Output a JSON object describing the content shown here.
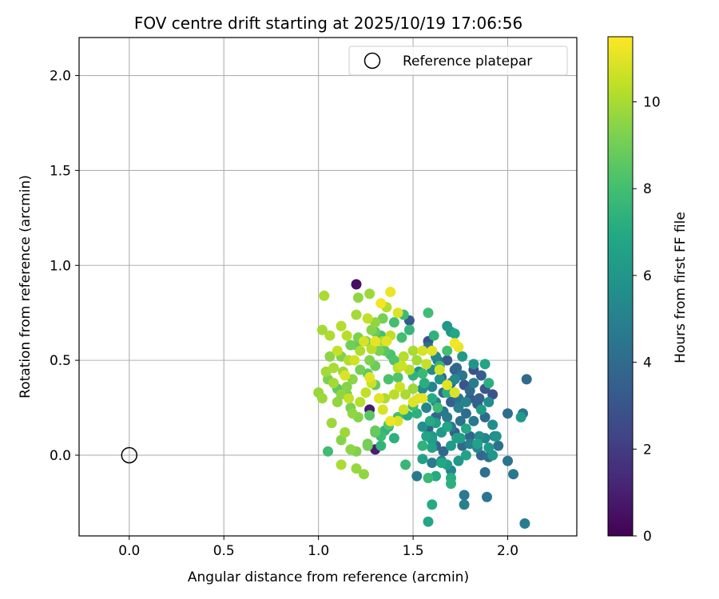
{
  "chart_data": {
    "type": "scatter",
    "title": "FOV centre drift starting at 2025/10/19 17:06:56",
    "xlabel": "Angular distance from reference (arcmin)",
    "ylabel": "Rotation from reference (arcmin)",
    "xlim": [
      -0.265,
      2.365
    ],
    "ylim": [
      -0.425,
      2.2
    ],
    "xticks": [
      0.0,
      0.5,
      1.0,
      1.5,
      2.0
    ],
    "xtick_labels": [
      "0.0",
      "0.5",
      "1.0",
      "1.5",
      "2.0"
    ],
    "yticks": [
      0.0,
      0.5,
      1.0,
      1.5,
      2.0
    ],
    "ytick_labels": [
      "0.0",
      "0.5",
      "1.0",
      "1.5",
      "2.0"
    ],
    "grid": true,
    "colorbar": {
      "label": "Hours from first FF file",
      "range": [
        0,
        11.5
      ],
      "ticks": [
        0,
        2,
        4,
        6,
        8,
        10
      ],
      "tick_labels": [
        "0",
        "2",
        "4",
        "6",
        "8",
        "10"
      ],
      "colormap": "viridis"
    },
    "legend": {
      "position": "top-right",
      "entries": [
        "Reference platepar"
      ]
    },
    "reference_point": {
      "x": 0.0,
      "y": 0.0,
      "label": "Reference platepar"
    },
    "points": [
      [
        1.2,
        0.9,
        0.5
      ],
      [
        1.27,
        0.24,
        0.8
      ],
      [
        1.3,
        0.03,
        1.0
      ],
      [
        1.48,
        0.71,
        3.3
      ],
      [
        1.58,
        0.6,
        3.0
      ],
      [
        1.68,
        0.5,
        3.2
      ],
      [
        1.72,
        0.45,
        3.5
      ],
      [
        1.77,
        0.37,
        3.0
      ],
      [
        1.82,
        0.45,
        2.8
      ],
      [
        1.86,
        0.42,
        3.4
      ],
      [
        1.88,
        0.35,
        3.1
      ],
      [
        1.92,
        0.32,
        3.0
      ],
      [
        1.8,
        0.3,
        3.3
      ],
      [
        1.84,
        0.27,
        3.5
      ],
      [
        1.7,
        0.28,
        3.6
      ],
      [
        1.66,
        0.33,
        3.7
      ],
      [
        1.62,
        0.2,
        3.8
      ],
      [
        1.58,
        0.14,
        3.5
      ],
      [
        1.62,
        0.05,
        3.6
      ],
      [
        1.66,
        0.02,
        3.9
      ],
      [
        1.72,
        0.12,
        3.5
      ],
      [
        1.76,
        0.05,
        4.0
      ],
      [
        1.8,
        0.1,
        3.7
      ],
      [
        1.86,
        0.0,
        3.8
      ],
      [
        1.9,
        -0.01,
        4.2
      ],
      [
        1.95,
        0.05,
        4.3
      ],
      [
        2.0,
        0.22,
        4.1
      ],
      [
        2.08,
        0.22,
        4.5
      ],
      [
        2.1,
        0.4,
        4.0
      ],
      [
        2.0,
        -0.03,
        4.4
      ],
      [
        2.03,
        -0.1,
        4.6
      ],
      [
        2.09,
        -0.36,
        4.8
      ],
      [
        1.89,
        -0.22,
        4.5
      ],
      [
        1.77,
        -0.21,
        4.7
      ],
      [
        1.77,
        -0.26,
        4.9
      ],
      [
        1.88,
        -0.09,
        4.3
      ],
      [
        1.52,
        -0.11,
        4.6
      ],
      [
        1.6,
        -0.04,
        4.8
      ],
      [
        1.65,
        -0.03,
        5.0
      ],
      [
        1.7,
        -0.08,
        5.2
      ],
      [
        1.65,
        0.41,
        3.9
      ],
      [
        1.7,
        0.38,
        4.2
      ],
      [
        1.74,
        0.3,
        4.4
      ],
      [
        1.78,
        0.22,
        4.1
      ],
      [
        1.82,
        0.18,
        4.6
      ],
      [
        1.68,
        0.2,
        4.7
      ],
      [
        1.74,
        0.25,
        4.9
      ],
      [
        1.8,
        0.06,
        5.0
      ],
      [
        1.84,
        0.04,
        5.3
      ],
      [
        1.88,
        0.09,
        5.1
      ],
      [
        1.93,
        0.1,
        5.4
      ],
      [
        1.92,
        0.16,
        5.6
      ],
      [
        1.57,
        0.25,
        5.2
      ],
      [
        1.55,
        0.35,
        5.5
      ],
      [
        1.53,
        0.44,
        5.8
      ],
      [
        1.62,
        0.52,
        5.3
      ],
      [
        1.68,
        0.68,
        6.0
      ],
      [
        1.7,
        0.65,
        6.1
      ],
      [
        1.6,
        0.45,
        5.6
      ],
      [
        1.64,
        0.4,
        5.9
      ],
      [
        1.55,
        0.15,
        5.7
      ],
      [
        1.6,
        0.1,
        6.2
      ],
      [
        1.65,
        0.12,
        6.1
      ],
      [
        1.7,
        0.05,
        6.3
      ],
      [
        1.75,
        0.09,
        6.4
      ],
      [
        1.84,
        0.06,
        6.6
      ],
      [
        1.9,
        0.04,
        6.2
      ],
      [
        1.55,
        -0.02,
        6.5
      ],
      [
        1.6,
        0.08,
        6.3
      ],
      [
        1.58,
        -0.35,
        6.8
      ],
      [
        1.6,
        -0.26,
        7.0
      ],
      [
        1.65,
        -0.04,
        6.9
      ],
      [
        1.7,
        -0.12,
        7.1
      ],
      [
        1.62,
        -0.11,
        7.0
      ],
      [
        1.6,
        0.04,
        6.6
      ],
      [
        1.62,
        0.17,
        6.4
      ],
      [
        1.68,
        0.15,
        6.8
      ],
      [
        1.73,
        0.09,
        6.5
      ],
      [
        1.78,
        0.14,
        6.9
      ],
      [
        1.82,
        0.48,
        5.9
      ],
      [
        1.88,
        0.48,
        6.7
      ],
      [
        1.9,
        0.38,
        7.2
      ],
      [
        1.86,
        0.24,
        6.3
      ],
      [
        2.07,
        0.2,
        6.2
      ],
      [
        1.68,
        0.33,
        7.2
      ],
      [
        1.6,
        0.3,
        7.0
      ],
      [
        1.55,
        0.05,
        7.4
      ],
      [
        1.46,
        -0.05,
        7.6
      ],
      [
        1.52,
        0.22,
        7.3
      ],
      [
        1.5,
        0.26,
        7.8
      ],
      [
        1.55,
        0.43,
        7.7
      ],
      [
        1.58,
        0.75,
        7.9
      ],
      [
        1.45,
        0.74,
        7.8
      ],
      [
        1.4,
        0.7,
        8.0
      ],
      [
        1.33,
        0.63,
        8.1
      ],
      [
        1.38,
        0.53,
        8.2
      ],
      [
        1.42,
        0.41,
        8.3
      ],
      [
        1.35,
        0.13,
        7.5
      ],
      [
        1.33,
        0.1,
        7.8
      ],
      [
        1.37,
        0.16,
        8.4
      ],
      [
        1.42,
        0.2,
        8.0
      ],
      [
        1.27,
        0.21,
        8.5
      ],
      [
        1.05,
        0.02,
        7.9
      ],
      [
        1.1,
        0.35,
        8.6
      ],
      [
        1.15,
        0.32,
        8.9
      ],
      [
        1.2,
        0.58,
        8.7
      ],
      [
        1.25,
        0.6,
        9.0
      ],
      [
        1.3,
        0.65,
        8.8
      ],
      [
        1.32,
        0.55,
        9.2
      ],
      [
        1.27,
        0.5,
        9.3
      ],
      [
        1.22,
        0.45,
        9.1
      ],
      [
        1.18,
        0.4,
        9.5
      ],
      [
        1.15,
        0.36,
        9.4
      ],
      [
        1.1,
        0.28,
        9.6
      ],
      [
        1.05,
        0.4,
        9.2
      ],
      [
        1.02,
        0.3,
        9.8
      ],
      [
        1.0,
        0.33,
        9.7
      ],
      [
        1.04,
        0.44,
        9.9
      ],
      [
        1.08,
        0.46,
        10.0
      ],
      [
        1.13,
        0.44,
        9.8
      ],
      [
        1.16,
        0.5,
        10.2
      ],
      [
        1.22,
        0.55,
        10.1
      ],
      [
        1.28,
        0.56,
        10.3
      ],
      [
        1.34,
        0.6,
        10.0
      ],
      [
        1.38,
        0.63,
        10.4
      ],
      [
        1.36,
        0.78,
        10.2
      ],
      [
        1.27,
        0.85,
        9.8
      ],
      [
        1.21,
        0.83,
        9.6
      ],
      [
        1.03,
        0.84,
        10.0
      ],
      [
        1.02,
        0.66,
        9.9
      ],
      [
        1.06,
        0.63,
        10.1
      ],
      [
        1.12,
        0.68,
        10.2
      ],
      [
        1.15,
        0.63,
        10.3
      ],
      [
        1.2,
        0.74,
        9.9
      ],
      [
        1.26,
        0.72,
        10.4
      ],
      [
        1.1,
        0.55,
        10.5
      ],
      [
        1.16,
        0.5,
        10.0
      ],
      [
        1.18,
        0.22,
        9.6
      ],
      [
        1.14,
        0.12,
        9.8
      ],
      [
        1.12,
        0.08,
        9.4
      ],
      [
        1.17,
        0.03,
        9.5
      ],
      [
        1.12,
        -0.05,
        10.0
      ],
      [
        1.2,
        -0.07,
        9.7
      ],
      [
        1.24,
        -0.1,
        9.6
      ],
      [
        1.07,
        0.17,
        9.8
      ],
      [
        1.2,
        0.02,
        9.3
      ],
      [
        1.26,
        0.05,
        9.1
      ],
      [
        1.3,
        0.12,
        8.6
      ],
      [
        1.35,
        0.3,
        10.1
      ],
      [
        1.4,
        0.32,
        10.3
      ],
      [
        1.46,
        0.32,
        10.0
      ],
      [
        1.5,
        0.35,
        9.8
      ],
      [
        1.42,
        0.46,
        10.4
      ],
      [
        1.45,
        0.52,
        10.2
      ],
      [
        1.5,
        0.55,
        10.0
      ],
      [
        1.52,
        0.5,
        9.9
      ],
      [
        1.57,
        0.48,
        10.5
      ],
      [
        1.55,
        0.55,
        10.8
      ],
      [
        1.6,
        0.55,
        11.0
      ],
      [
        1.64,
        0.45,
        10.8
      ],
      [
        1.68,
        0.37,
        11.0
      ],
      [
        1.72,
        0.33,
        10.9
      ],
      [
        1.74,
        0.57,
        11.2
      ],
      [
        1.72,
        0.59,
        11.3
      ],
      [
        1.55,
        0.3,
        11.1
      ],
      [
        1.53,
        0.3,
        10.9
      ],
      [
        1.5,
        0.28,
        11.0
      ],
      [
        1.45,
        0.24,
        10.7
      ],
      [
        1.42,
        0.18,
        10.9
      ],
      [
        1.38,
        0.18,
        11.2
      ],
      [
        1.34,
        0.24,
        10.8
      ],
      [
        1.32,
        0.3,
        11.0
      ],
      [
        1.28,
        0.38,
        10.6
      ],
      [
        1.25,
        0.33,
        10.4
      ],
      [
        1.22,
        0.28,
        10.2
      ],
      [
        1.16,
        0.3,
        10.5
      ],
      [
        1.14,
        0.42,
        10.9
      ],
      [
        1.19,
        0.5,
        10.7
      ],
      [
        1.24,
        0.6,
        10.8
      ],
      [
        1.3,
        0.6,
        11.1
      ],
      [
        1.36,
        0.6,
        11.0
      ],
      [
        1.38,
        0.86,
        11.2
      ],
      [
        1.33,
        0.8,
        11.3
      ],
      [
        1.42,
        0.75,
        10.9
      ],
      [
        1.44,
        0.47,
        10.6
      ],
      [
        1.48,
        0.45,
        10.3
      ],
      [
        1.43,
        0.36,
        10.6
      ],
      [
        1.27,
        0.41,
        11.0
      ],
      [
        1.35,
        0.55,
        8.5
      ],
      [
        1.4,
        0.5,
        8.3
      ],
      [
        1.44,
        0.62,
        8.0
      ],
      [
        1.48,
        0.66,
        7.6
      ],
      [
        1.5,
        0.42,
        7.4
      ],
      [
        1.56,
        0.38,
        7.2
      ],
      [
        1.47,
        0.21,
        7.0
      ],
      [
        1.4,
        0.09,
        7.3
      ],
      [
        1.37,
        0.15,
        7.1
      ],
      [
        1.33,
        0.05,
        7.5
      ],
      [
        1.3,
        0.13,
        8.8
      ],
      [
        1.26,
        0.06,
        9.0
      ],
      [
        1.21,
        0.2,
        9.4
      ],
      [
        1.17,
        0.25,
        9.2
      ],
      [
        1.12,
        0.32,
        9.6
      ],
      [
        1.08,
        0.38,
        9.9
      ],
      [
        1.06,
        0.52,
        9.5
      ],
      [
        1.12,
        0.52,
        9.3
      ],
      [
        1.17,
        0.58,
        9.0
      ],
      [
        1.21,
        0.62,
        9.2
      ],
      [
        1.28,
        0.66,
        9.4
      ],
      [
        1.3,
        0.7,
        9.6
      ],
      [
        1.34,
        0.72,
        9.1
      ],
      [
        1.3,
        0.47,
        8.9
      ],
      [
        1.26,
        0.43,
        8.6
      ],
      [
        1.3,
        0.37,
        8.7
      ],
      [
        1.37,
        0.4,
        8.2
      ],
      [
        1.63,
        0.5,
        4.5
      ],
      [
        1.58,
        0.57,
        4.2
      ],
      [
        1.73,
        0.46,
        3.8
      ],
      [
        1.76,
        0.42,
        4.6
      ],
      [
        1.8,
        0.34,
        4.0
      ],
      [
        1.85,
        0.3,
        3.6
      ],
      [
        1.88,
        0.2,
        3.9
      ],
      [
        1.75,
        0.18,
        4.3
      ],
      [
        1.7,
        0.15,
        4.7
      ],
      [
        1.66,
        0.23,
        4.5
      ],
      [
        1.62,
        0.28,
        5.0
      ],
      [
        1.6,
        0.36,
        5.2
      ],
      [
        1.72,
        0.4,
        5.4
      ],
      [
        1.78,
        0.28,
        5.1
      ],
      [
        1.82,
        0.38,
        4.8
      ],
      [
        1.9,
        0.28,
        5.5
      ],
      [
        1.85,
        0.1,
        5.7
      ],
      [
        1.92,
        0.0,
        6.0
      ],
      [
        1.94,
        0.1,
        5.8
      ],
      [
        1.68,
        -0.05,
        6.4
      ],
      [
        1.74,
        -0.03,
        6.1
      ],
      [
        1.78,
        0.0,
        6.6
      ],
      [
        1.58,
        -0.12,
        7.7
      ],
      [
        1.7,
        -0.15,
        7.3
      ],
      [
        1.64,
        0.47,
        7.6
      ],
      [
        1.68,
        0.55,
        8.0
      ],
      [
        1.61,
        0.63,
        7.4
      ],
      [
        1.72,
        0.64,
        6.9
      ],
      [
        1.76,
        0.52,
        6.2
      ],
      [
        1.59,
        0.18,
        7.0
      ],
      [
        1.63,
        0.25,
        7.8
      ],
      [
        1.57,
        0.1,
        6.7
      ]
    ]
  }
}
